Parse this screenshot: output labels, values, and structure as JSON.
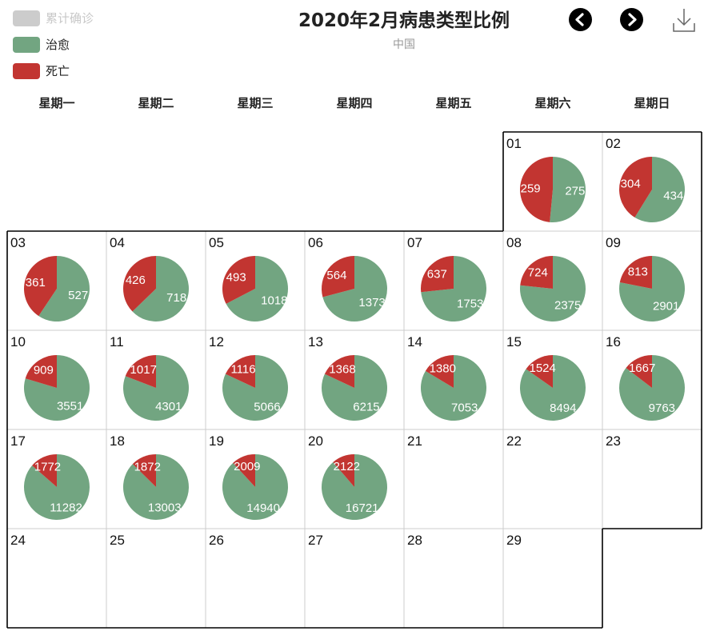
{
  "legend": [
    {
      "label": "累计确诊",
      "color": "#cccccc",
      "enabled": false
    },
    {
      "label": "治愈",
      "color": "#72a581",
      "enabled": true
    },
    {
      "label": "死亡",
      "color": "#c23531",
      "enabled": true
    }
  ],
  "title": "2020年2月病患类型比例",
  "subtitle": "中国",
  "toolbar": {
    "prev_icon": "chevron-left-icon",
    "next_icon": "chevron-right-icon",
    "download_icon": "download-icon"
  },
  "weekdays": [
    "星期一",
    "星期二",
    "星期三",
    "星期四",
    "星期五",
    "星期六",
    "星期日"
  ],
  "chart_data": {
    "type": "pie",
    "layout": "calendar",
    "month": "2020-02",
    "first_weekday": "星期六",
    "series_names": [
      "死亡",
      "治愈"
    ],
    "colors": {
      "死亡": "#c23531",
      "治愈": "#72a581"
    },
    "days": [
      {
        "day": "01",
        "death": 259,
        "cured": 275
      },
      {
        "day": "02",
        "death": 304,
        "cured": 434
      },
      {
        "day": "03",
        "death": 361,
        "cured": 527
      },
      {
        "day": "04",
        "death": 426,
        "cured": 718
      },
      {
        "day": "05",
        "death": 493,
        "cured": 1018
      },
      {
        "day": "06",
        "death": 564,
        "cured": 1373
      },
      {
        "day": "07",
        "death": 637,
        "cured": 1753
      },
      {
        "day": "08",
        "death": 724,
        "cured": 2375
      },
      {
        "day": "09",
        "death": 813,
        "cured": 2901
      },
      {
        "day": "10",
        "death": 909,
        "cured": 3551
      },
      {
        "day": "11",
        "death": 1017,
        "cured": 4301
      },
      {
        "day": "12",
        "death": 1116,
        "cured": 5066
      },
      {
        "day": "13",
        "death": 1368,
        "cured": 6215
      },
      {
        "day": "14",
        "death": 1380,
        "cured": 7053
      },
      {
        "day": "15",
        "death": 1524,
        "cured": 8494
      },
      {
        "day": "16",
        "death": 1667,
        "cured": 9763
      },
      {
        "day": "17",
        "death": 1772,
        "cured": 11282
      },
      {
        "day": "18",
        "death": 1872,
        "cured": 13003
      },
      {
        "day": "19",
        "death": 2009,
        "cured": 14940
      },
      {
        "day": "20",
        "death": 2122,
        "cured": 16721
      },
      {
        "day": "21"
      },
      {
        "day": "22"
      },
      {
        "day": "23"
      },
      {
        "day": "24"
      },
      {
        "day": "25"
      },
      {
        "day": "26"
      },
      {
        "day": "27"
      },
      {
        "day": "28"
      },
      {
        "day": "29"
      }
    ]
  }
}
